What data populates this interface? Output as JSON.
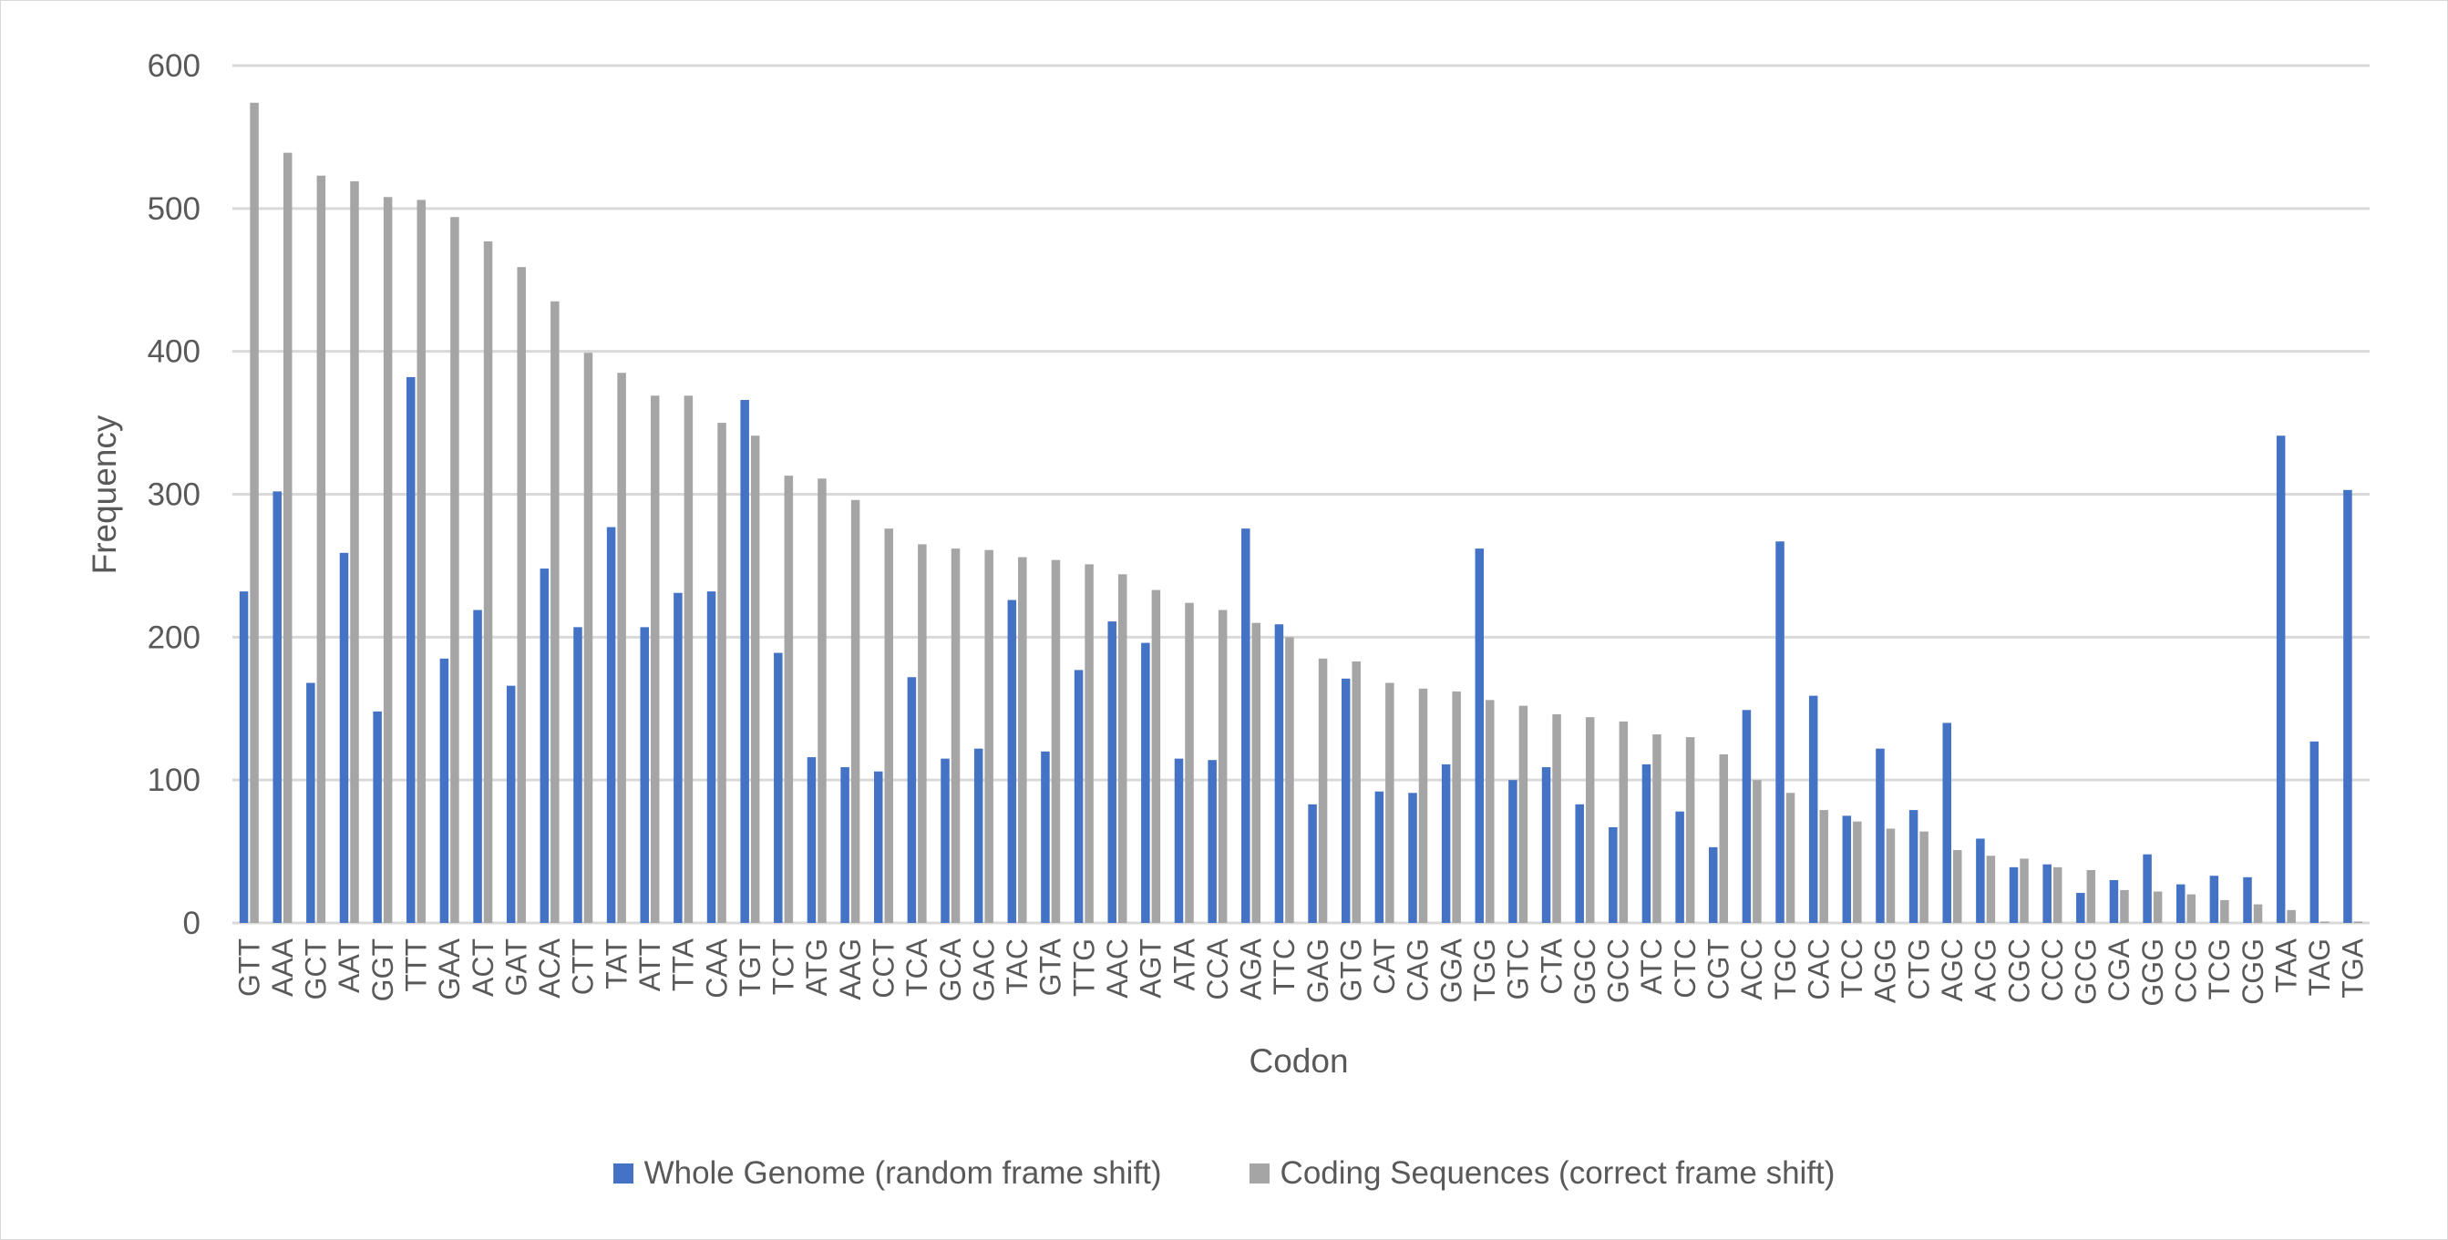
{
  "chart_data": {
    "type": "bar",
    "xlabel": "Codon",
    "ylabel": "Frequency",
    "ylim": [
      0,
      600
    ],
    "yticks": [
      0,
      100,
      200,
      300,
      400,
      500,
      600
    ],
    "grid": true,
    "legend_position": "bottom",
    "categories": [
      "GTT",
      "AAA",
      "GCT",
      "AAT",
      "GGT",
      "TTT",
      "GAA",
      "ACT",
      "GAT",
      "ACA",
      "CTT",
      "TAT",
      "ATT",
      "TTA",
      "CAA",
      "TGT",
      "TCT",
      "ATG",
      "AAG",
      "CCT",
      "TCA",
      "GCA",
      "GAC",
      "TAC",
      "GTA",
      "TTG",
      "AAC",
      "AGT",
      "ATA",
      "CCA",
      "AGA",
      "TTC",
      "GAG",
      "GTG",
      "CAT",
      "CAG",
      "GGA",
      "TGG",
      "GTC",
      "CTA",
      "GGC",
      "GCC",
      "ATC",
      "CTC",
      "CGT",
      "ACC",
      "TGC",
      "CAC",
      "TCC",
      "AGG",
      "CTG",
      "AGC",
      "ACG",
      "CGC",
      "CCC",
      "GCG",
      "CGA",
      "GGG",
      "CCG",
      "TCG",
      "CGG",
      "TAA",
      "TAG",
      "TGA"
    ],
    "series": [
      {
        "name": "Whole Genome (random frame shift)",
        "color": "#4472c4",
        "values": [
          232,
          302,
          168,
          259,
          148,
          382,
          185,
          219,
          166,
          248,
          207,
          277,
          207,
          231,
          232,
          366,
          189,
          116,
          109,
          106,
          172,
          115,
          122,
          226,
          120,
          177,
          211,
          196,
          115,
          114,
          276,
          209,
          83,
          171,
          92,
          91,
          111,
          262,
          100,
          109,
          83,
          67,
          111,
          78,
          53,
          149,
          267,
          159,
          75,
          122,
          79,
          140,
          59,
          39,
          41,
          21,
          30,
          48,
          27,
          33,
          32,
          341,
          127,
          303
        ]
      },
      {
        "name": "Coding Sequences (correct frame shift)",
        "color": "#a5a5a5",
        "values": [
          574,
          539,
          523,
          519,
          508,
          506,
          494,
          477,
          459,
          435,
          399,
          385,
          369,
          369,
          350,
          341,
          313,
          311,
          296,
          276,
          265,
          262,
          261,
          256,
          254,
          251,
          244,
          233,
          224,
          219,
          210,
          200,
          185,
          183,
          168,
          164,
          162,
          156,
          152,
          146,
          144,
          141,
          132,
          130,
          118,
          100,
          91,
          79,
          71,
          66,
          64,
          51,
          47,
          45,
          39,
          37,
          23,
          22,
          20,
          16,
          13,
          9,
          1,
          1
        ]
      }
    ]
  }
}
